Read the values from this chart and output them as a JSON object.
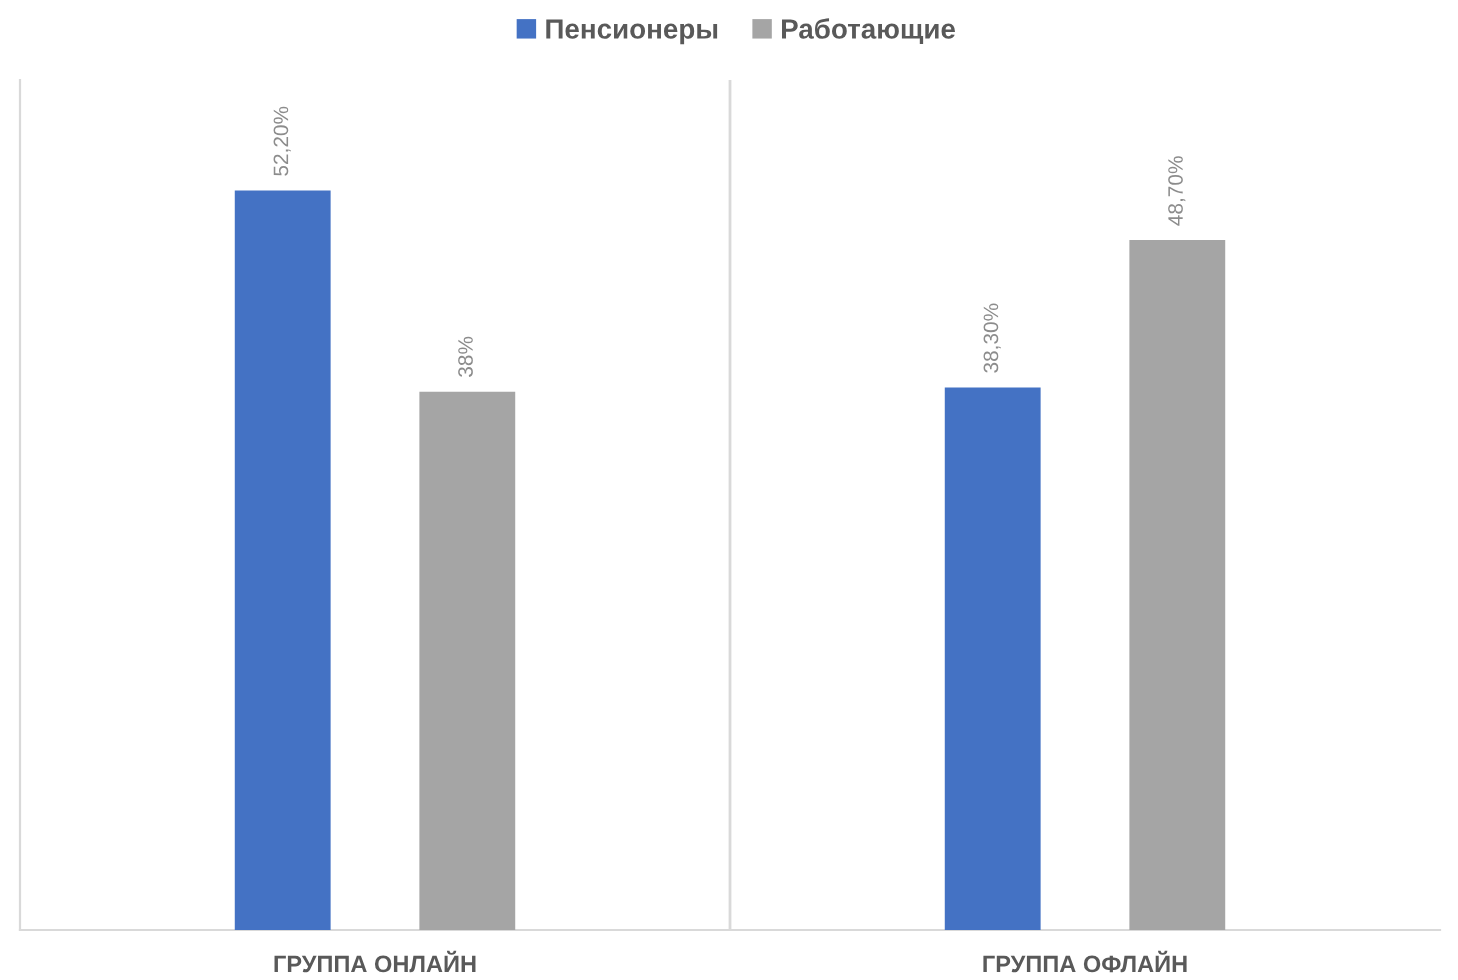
{
  "chart_data": {
    "type": "bar",
    "categories": [
      "ГРУППА ОНЛАЙН",
      "ГРУППА ОФЛАЙН"
    ],
    "series": [
      {
        "name": "Пенсионеры",
        "color": "#4472c4",
        "values": [
          52.2,
          38.3
        ],
        "value_labels": [
          "52,20%",
          "38,30%"
        ]
      },
      {
        "name": "Работающие",
        "color": "#a5a5a5",
        "values": [
          38,
          48.7
        ],
        "value_labels": [
          "38%",
          "48,70%"
        ]
      }
    ],
    "ylim": [
      0,
      60
    ],
    "tick_labels": "x",
    "grid": "x",
    "legend": "top"
  }
}
